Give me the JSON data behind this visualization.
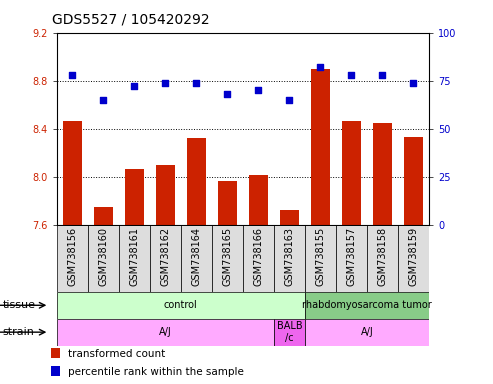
{
  "title": "GDS5527 / 105420292",
  "samples": [
    "GSM738156",
    "GSM738160",
    "GSM738161",
    "GSM738162",
    "GSM738164",
    "GSM738165",
    "GSM738166",
    "GSM738163",
    "GSM738155",
    "GSM738157",
    "GSM738158",
    "GSM738159"
  ],
  "bar_values": [
    8.46,
    7.75,
    8.06,
    8.1,
    8.32,
    7.96,
    8.01,
    7.72,
    8.9,
    8.46,
    8.45,
    8.33
  ],
  "dot_values": [
    78,
    65,
    72,
    74,
    74,
    68,
    70,
    65,
    82,
    78,
    78,
    74
  ],
  "ylim_left": [
    7.6,
    9.2
  ],
  "ylim_right": [
    0,
    100
  ],
  "yticks_left": [
    7.6,
    8.0,
    8.4,
    8.8,
    9.2
  ],
  "yticks_right": [
    0,
    25,
    50,
    75,
    100
  ],
  "bar_color": "#cc2200",
  "dot_color": "#0000cc",
  "tissue_labels": [
    {
      "text": "control",
      "start": 0,
      "end": 8,
      "color": "#ccffcc"
    },
    {
      "text": "rhabdomyosarcoma tumor",
      "start": 8,
      "end": 12,
      "color": "#88cc88"
    }
  ],
  "strain_labels": [
    {
      "text": "A/J",
      "start": 0,
      "end": 7,
      "color": "#ffaaff"
    },
    {
      "text": "BALB\n/c",
      "start": 7,
      "end": 8,
      "color": "#ee66ee"
    },
    {
      "text": "A/J",
      "start": 8,
      "end": 12,
      "color": "#ffaaff"
    }
  ],
  "legend_items": [
    {
      "label": "transformed count",
      "color": "#cc2200"
    },
    {
      "label": "percentile rank within the sample",
      "color": "#0000cc"
    }
  ],
  "tick_label_fontsize": 7,
  "bar_width": 0.6
}
